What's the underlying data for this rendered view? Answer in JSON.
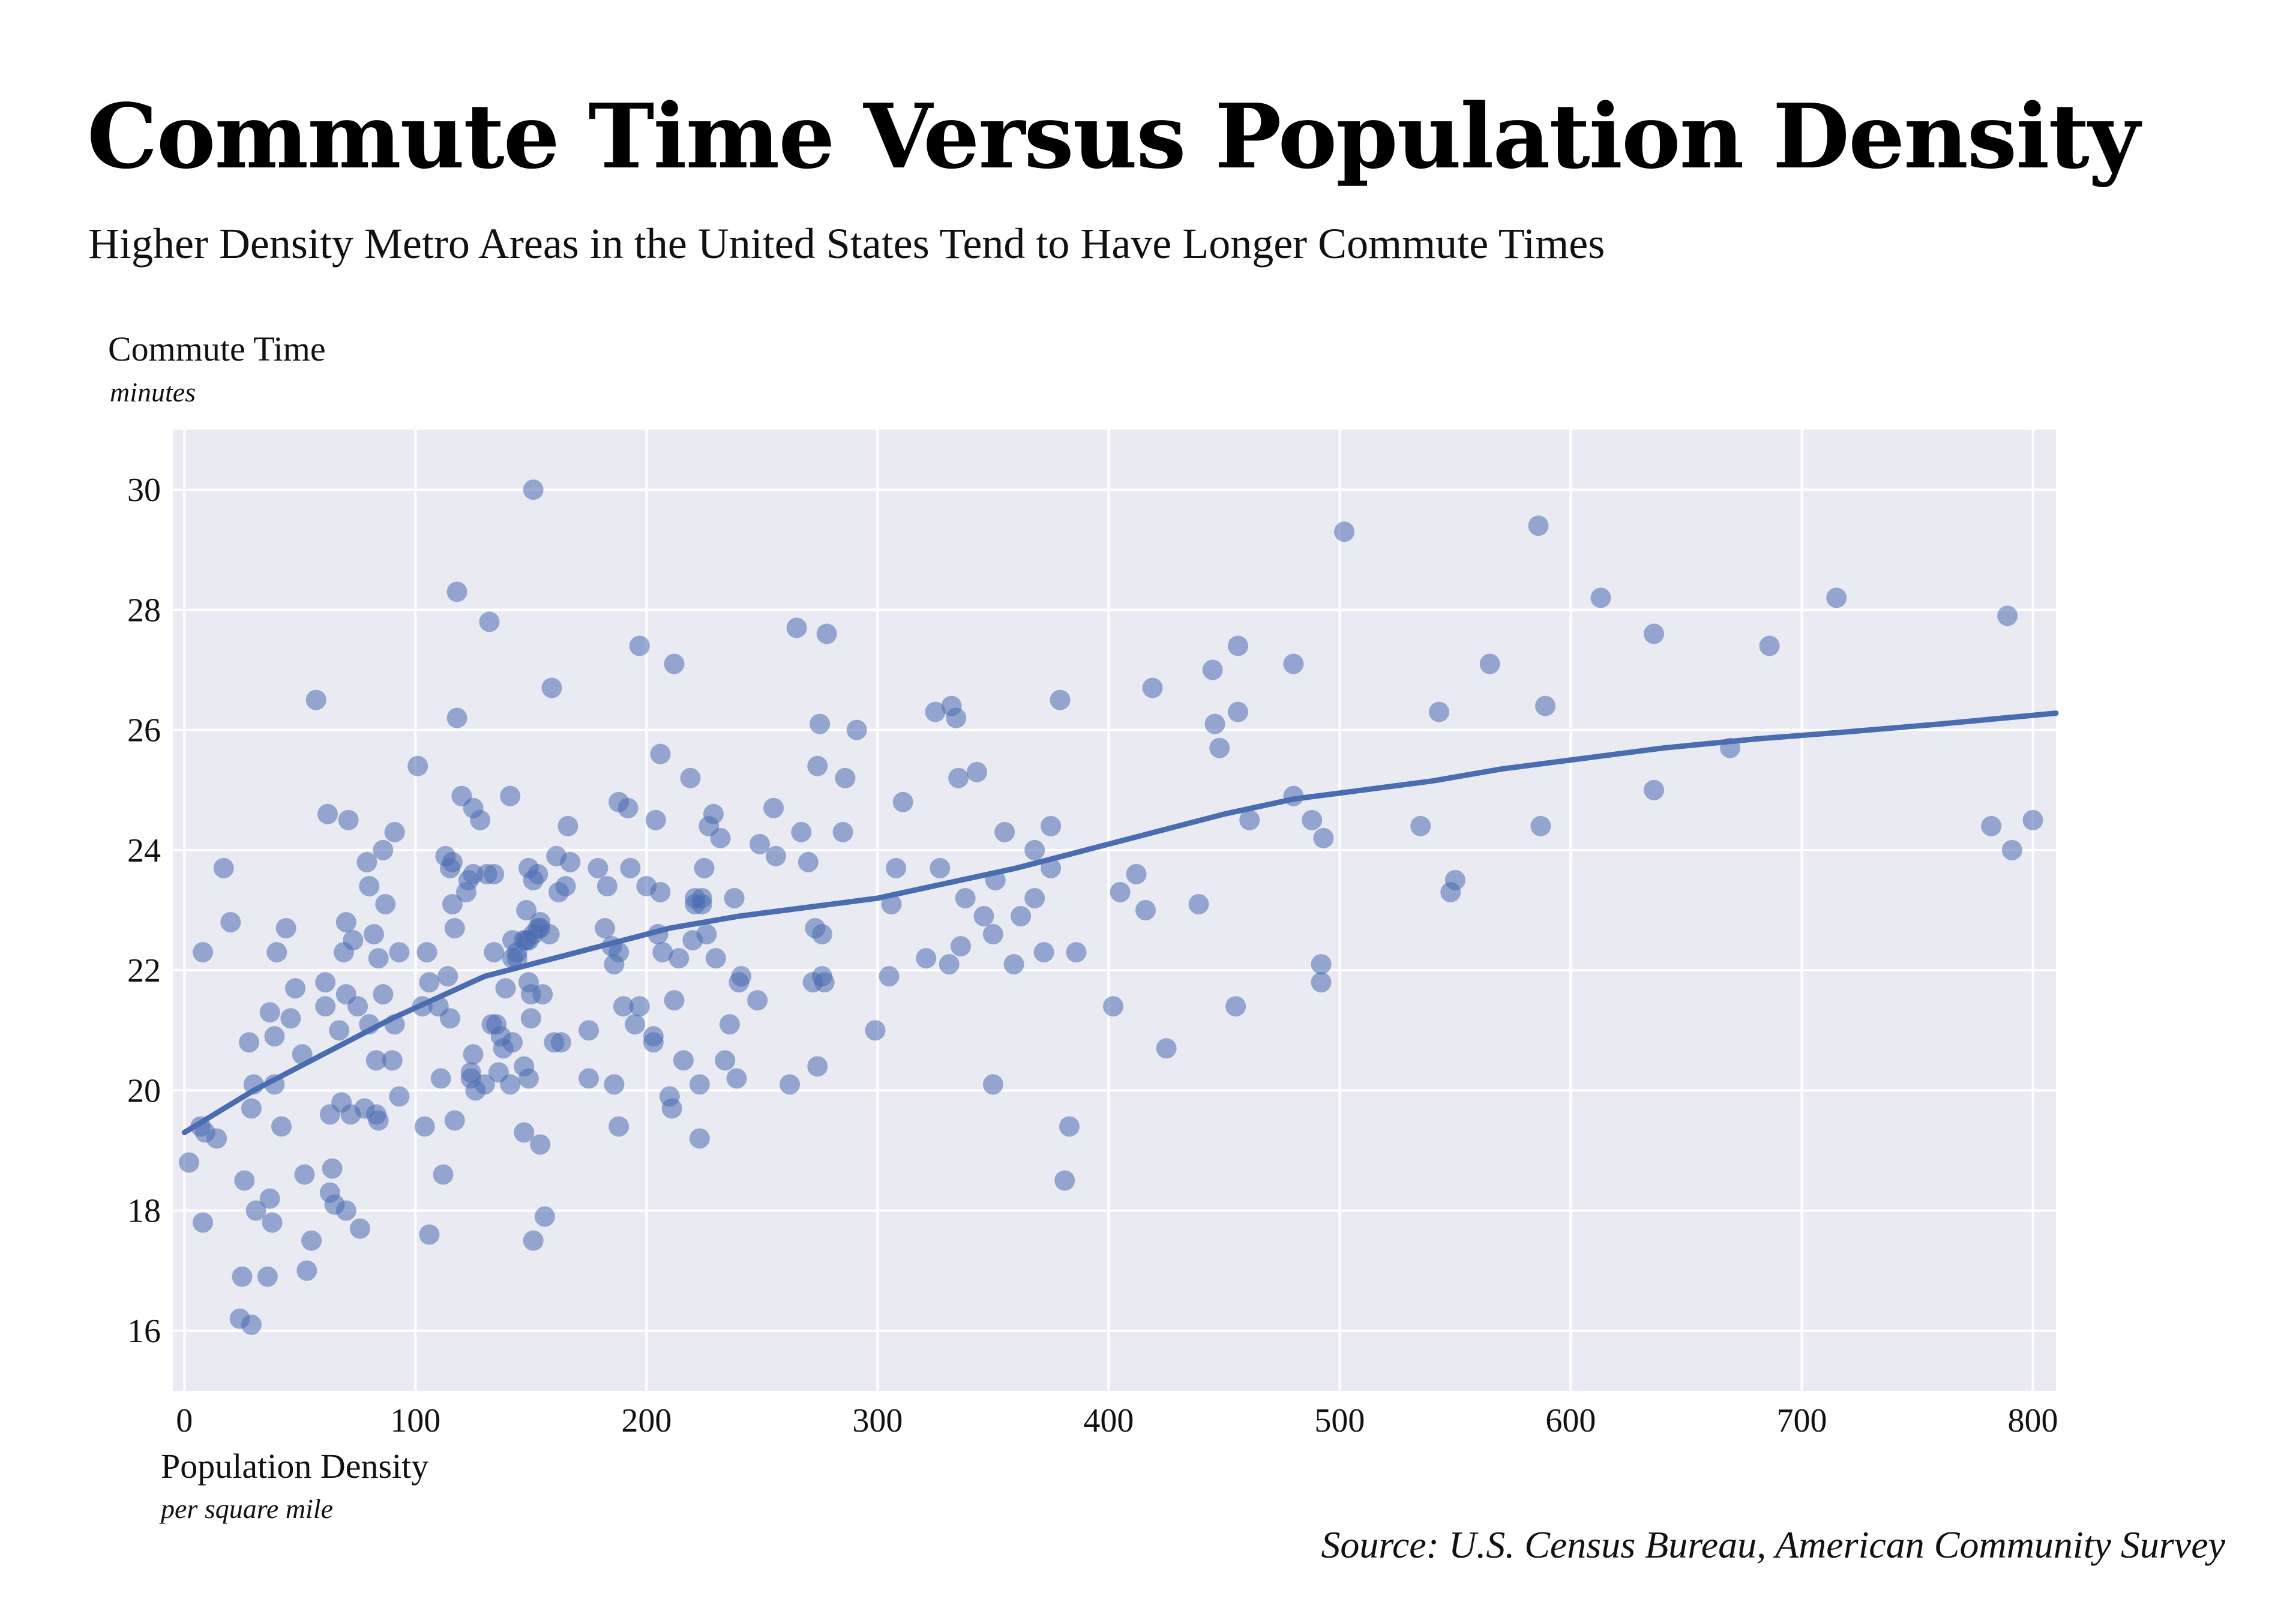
{
  "chart_data": {
    "type": "scatter",
    "title": "Commute Time Versus Population Density",
    "subtitle": "Higher Density Metro Areas in the United States Tend to Have Longer Commute Times",
    "ylabel": "Commute Time",
    "ylabel_unit": "minutes",
    "xlabel": "Population Density",
    "xlabel_unit": "per square mile",
    "source": "Source: U.S. Census Bureau, American Community Survey",
    "xlim": [
      -5,
      810
    ],
    "ylim": [
      15,
      31
    ],
    "xticks": [
      0,
      100,
      200,
      300,
      400,
      500,
      600,
      700,
      800
    ],
    "yticks": [
      16,
      18,
      20,
      22,
      24,
      26,
      28,
      30
    ],
    "grid": true,
    "colors": {
      "points": "#4a6cb0",
      "trend": "#4a6cb0",
      "plot_background": "#eaeaf2",
      "grid": "#ffffff"
    },
    "series": [
      {
        "type": "scatter",
        "points": [
          [
            2,
            18.8
          ],
          [
            7,
            19.4
          ],
          [
            8,
            22.3
          ],
          [
            8,
            17.8
          ],
          [
            9,
            19.3
          ],
          [
            14,
            19.2
          ],
          [
            17,
            23.7
          ],
          [
            20,
            22.8
          ],
          [
            24,
            16.2
          ],
          [
            25,
            16.9
          ],
          [
            26,
            18.5
          ],
          [
            28,
            20.8
          ],
          [
            29,
            16.1
          ],
          [
            29,
            19.7
          ],
          [
            30,
            20.1
          ],
          [
            31,
            18.0
          ],
          [
            36,
            16.9
          ],
          [
            37,
            21.3
          ],
          [
            37,
            18.2
          ],
          [
            38,
            17.8
          ],
          [
            39,
            20.9
          ],
          [
            39,
            20.1
          ],
          [
            40,
            22.3
          ],
          [
            42,
            19.4
          ],
          [
            44,
            22.7
          ],
          [
            46,
            21.2
          ],
          [
            48,
            21.7
          ],
          [
            51,
            20.6
          ],
          [
            52,
            18.6
          ],
          [
            53,
            17.0
          ],
          [
            55,
            17.5
          ],
          [
            57,
            26.5
          ],
          [
            61,
            21.4
          ],
          [
            61,
            21.8
          ],
          [
            62,
            24.6
          ],
          [
            63,
            19.6
          ],
          [
            63,
            18.3
          ],
          [
            64,
            18.7
          ],
          [
            65,
            18.1
          ],
          [
            67,
            21.0
          ],
          [
            68,
            19.8
          ],
          [
            69,
            22.3
          ],
          [
            70,
            21.6
          ],
          [
            70,
            18.0
          ],
          [
            70,
            22.8
          ],
          [
            71,
            24.5
          ],
          [
            72,
            19.6
          ],
          [
            73,
            22.5
          ],
          [
            75,
            21.4
          ],
          [
            76,
            17.7
          ],
          [
            78,
            19.7
          ],
          [
            79,
            23.8
          ],
          [
            80,
            21.1
          ],
          [
            80,
            23.4
          ],
          [
            82,
            22.6
          ],
          [
            83,
            20.5
          ],
          [
            83,
            19.6
          ],
          [
            84,
            19.5
          ],
          [
            84,
            22.2
          ],
          [
            86,
            24.0
          ],
          [
            86,
            21.6
          ],
          [
            87,
            23.1
          ],
          [
            90,
            20.5
          ],
          [
            91,
            21.1
          ],
          [
            91,
            24.3
          ],
          [
            93,
            22.3
          ],
          [
            93,
            19.9
          ],
          [
            101,
            25.4
          ],
          [
            103,
            21.4
          ],
          [
            104,
            19.4
          ],
          [
            105,
            22.3
          ],
          [
            106,
            21.8
          ],
          [
            106,
            17.6
          ],
          [
            110,
            21.4
          ],
          [
            111,
            20.2
          ],
          [
            112,
            18.6
          ],
          [
            113,
            23.9
          ],
          [
            114,
            21.9
          ],
          [
            115,
            23.7
          ],
          [
            115,
            21.2
          ],
          [
            116,
            23.8
          ],
          [
            116,
            23.1
          ],
          [
            117,
            22.7
          ],
          [
            117,
            19.5
          ],
          [
            118,
            28.3
          ],
          [
            118,
            26.2
          ],
          [
            120,
            24.9
          ],
          [
            122,
            23.3
          ],
          [
            123,
            23.5
          ],
          [
            124,
            20.3
          ],
          [
            124,
            20.2
          ],
          [
            125,
            20.6
          ],
          [
            125,
            24.7
          ],
          [
            125,
            23.6
          ],
          [
            126,
            20.0
          ],
          [
            128,
            24.5
          ],
          [
            130,
            20.1
          ],
          [
            131,
            23.6
          ],
          [
            132,
            27.8
          ],
          [
            133,
            21.1
          ],
          [
            134,
            22.3
          ],
          [
            134,
            23.6
          ],
          [
            135,
            21.1
          ],
          [
            136,
            20.3
          ],
          [
            137,
            20.9
          ],
          [
            138,
            20.7
          ],
          [
            139,
            21.7
          ],
          [
            141,
            24.9
          ],
          [
            141,
            20.1
          ],
          [
            142,
            22.2
          ],
          [
            142,
            20.8
          ],
          [
            142,
            22.5
          ],
          [
            144,
            22.2
          ],
          [
            144,
            22.3
          ],
          [
            147,
            20.4
          ],
          [
            147,
            19.3
          ],
          [
            147,
            22.5
          ],
          [
            148,
            22.5
          ],
          [
            148,
            23.0
          ],
          [
            149,
            22.5
          ],
          [
            149,
            23.7
          ],
          [
            149,
            21.8
          ],
          [
            149,
            20.2
          ],
          [
            150,
            21.2
          ],
          [
            150,
            21.6
          ],
          [
            151,
            22.6
          ],
          [
            151,
            17.5
          ],
          [
            151,
            23.5
          ],
          [
            151,
            30.0
          ],
          [
            153,
            22.7
          ],
          [
            153,
            23.6
          ],
          [
            154,
            22.8
          ],
          [
            154,
            22.7
          ],
          [
            154,
            19.1
          ],
          [
            155,
            21.6
          ],
          [
            156,
            17.9
          ],
          [
            158,
            22.6
          ],
          [
            159,
            26.7
          ],
          [
            160,
            20.8
          ],
          [
            161,
            23.9
          ],
          [
            162,
            23.3
          ],
          [
            163,
            20.8
          ],
          [
            165,
            23.4
          ],
          [
            166,
            24.4
          ],
          [
            167,
            23.8
          ],
          [
            175,
            20.2
          ],
          [
            175,
            21.0
          ],
          [
            179,
            23.7
          ],
          [
            182,
            22.7
          ],
          [
            183,
            23.4
          ],
          [
            185,
            22.4
          ],
          [
            186,
            22.1
          ],
          [
            186,
            20.1
          ],
          [
            188,
            24.8
          ],
          [
            188,
            22.3
          ],
          [
            188,
            19.4
          ],
          [
            190,
            21.4
          ],
          [
            192,
            24.7
          ],
          [
            193,
            23.7
          ],
          [
            195,
            21.1
          ],
          [
            197,
            21.4
          ],
          [
            197,
            27.4
          ],
          [
            200,
            23.4
          ],
          [
            203,
            20.9
          ],
          [
            203,
            20.8
          ],
          [
            204,
            24.5
          ],
          [
            205,
            22.6
          ],
          [
            206,
            25.6
          ],
          [
            206,
            23.3
          ],
          [
            207,
            22.3
          ],
          [
            210,
            19.9
          ],
          [
            211,
            19.7
          ],
          [
            212,
            27.1
          ],
          [
            212,
            21.5
          ],
          [
            214,
            22.2
          ],
          [
            216,
            20.5
          ],
          [
            219,
            25.2
          ],
          [
            220,
            22.5
          ],
          [
            221,
            23.2
          ],
          [
            221,
            23.1
          ],
          [
            223,
            19.2
          ],
          [
            223,
            20.1
          ],
          [
            224,
            23.1
          ],
          [
            224,
            23.2
          ],
          [
            225,
            23.7
          ],
          [
            226,
            22.6
          ],
          [
            227,
            24.4
          ],
          [
            229,
            24.6
          ],
          [
            230,
            22.2
          ],
          [
            232,
            24.2
          ],
          [
            234,
            20.5
          ],
          [
            236,
            21.1
          ],
          [
            238,
            23.2
          ],
          [
            239,
            20.2
          ],
          [
            240,
            21.8
          ],
          [
            241,
            21.9
          ],
          [
            248,
            21.5
          ],
          [
            249,
            24.1
          ],
          [
            255,
            24.7
          ],
          [
            256,
            23.9
          ],
          [
            262,
            20.1
          ],
          [
            265,
            27.7
          ],
          [
            267,
            24.3
          ],
          [
            270,
            23.8
          ],
          [
            272,
            21.8
          ],
          [
            273,
            22.7
          ],
          [
            274,
            20.4
          ],
          [
            274,
            25.4
          ],
          [
            275,
            26.1
          ],
          [
            276,
            21.9
          ],
          [
            276,
            22.6
          ],
          [
            277,
            21.8
          ],
          [
            278,
            27.6
          ],
          [
            285,
            24.3
          ],
          [
            286,
            25.2
          ],
          [
            291,
            26.0
          ],
          [
            299,
            21.0
          ],
          [
            305,
            21.9
          ],
          [
            306,
            23.1
          ],
          [
            308,
            23.7
          ],
          [
            311,
            24.8
          ],
          [
            321,
            22.2
          ],
          [
            325,
            26.3
          ],
          [
            327,
            23.7
          ],
          [
            331,
            22.1
          ],
          [
            332,
            26.4
          ],
          [
            334,
            26.2
          ],
          [
            335,
            25.2
          ],
          [
            336,
            22.4
          ],
          [
            338,
            23.2
          ],
          [
            343,
            25.3
          ],
          [
            346,
            22.9
          ],
          [
            350,
            22.6
          ],
          [
            350,
            20.1
          ],
          [
            351,
            23.5
          ],
          [
            355,
            24.3
          ],
          [
            359,
            22.1
          ],
          [
            362,
            22.9
          ],
          [
            368,
            23.2
          ],
          [
            368,
            24.0
          ],
          [
            372,
            22.3
          ],
          [
            375,
            23.7
          ],
          [
            375,
            24.4
          ],
          [
            379,
            26.5
          ],
          [
            381,
            18.5
          ],
          [
            383,
            19.4
          ],
          [
            386,
            22.3
          ],
          [
            402,
            21.4
          ],
          [
            405,
            23.3
          ],
          [
            412,
            23.6
          ],
          [
            416,
            23.0
          ],
          [
            419,
            26.7
          ],
          [
            425,
            20.7
          ],
          [
            439,
            23.1
          ],
          [
            445,
            27.0
          ],
          [
            446,
            26.1
          ],
          [
            448,
            25.7
          ],
          [
            455,
            21.4
          ],
          [
            456,
            27.4
          ],
          [
            456,
            26.3
          ],
          [
            461,
            24.5
          ],
          [
            480,
            27.1
          ],
          [
            480,
            24.9
          ],
          [
            488,
            24.5
          ],
          [
            492,
            21.8
          ],
          [
            492,
            22.1
          ],
          [
            493,
            24.2
          ],
          [
            502,
            29.3
          ],
          [
            535,
            24.4
          ],
          [
            543,
            26.3
          ],
          [
            548,
            23.3
          ],
          [
            550,
            23.5
          ],
          [
            565,
            27.1
          ],
          [
            586,
            29.4
          ],
          [
            587,
            24.4
          ],
          [
            589,
            26.4
          ],
          [
            613,
            28.2
          ],
          [
            636,
            27.6
          ],
          [
            636,
            25.0
          ],
          [
            669,
            25.7
          ],
          [
            686,
            27.4
          ],
          [
            715,
            28.2
          ],
          [
            782,
            24.4
          ],
          [
            789,
            27.9
          ],
          [
            791,
            24.0
          ],
          [
            800,
            24.5
          ]
        ]
      },
      {
        "type": "line",
        "points": [
          [
            0,
            19.3
          ],
          [
            30,
            20.0
          ],
          [
            60,
            20.6
          ],
          [
            90,
            21.2
          ],
          [
            110,
            21.55
          ],
          [
            130,
            21.9
          ],
          [
            150,
            22.1
          ],
          [
            170,
            22.3
          ],
          [
            190,
            22.5
          ],
          [
            210,
            22.7
          ],
          [
            240,
            22.9
          ],
          [
            270,
            23.05
          ],
          [
            300,
            23.2
          ],
          [
            330,
            23.45
          ],
          [
            360,
            23.7
          ],
          [
            390,
            24.0
          ],
          [
            420,
            24.3
          ],
          [
            450,
            24.6
          ],
          [
            480,
            24.85
          ],
          [
            510,
            25.0
          ],
          [
            540,
            25.15
          ],
          [
            570,
            25.35
          ],
          [
            600,
            25.5
          ],
          [
            640,
            25.7
          ],
          [
            680,
            25.85
          ],
          [
            720,
            25.97
          ],
          [
            760,
            26.1
          ],
          [
            810,
            26.28
          ]
        ]
      }
    ]
  }
}
